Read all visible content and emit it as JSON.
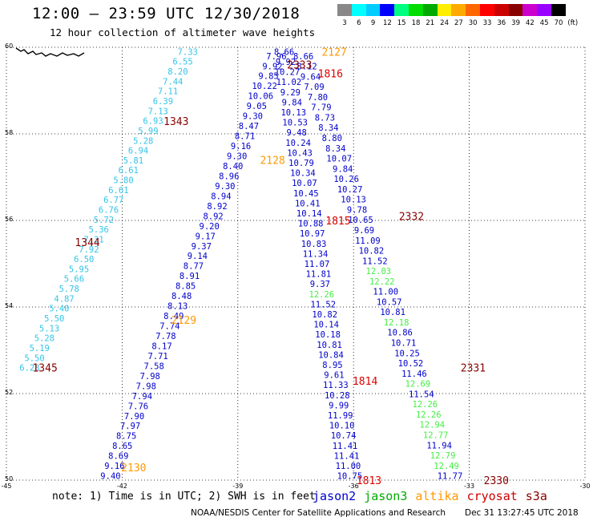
{
  "header": {
    "title": "12:00 — 23:59 UTC 12/30/2018",
    "subtitle": "12 hour collection of altimeter wave heights"
  },
  "colorbar": {
    "labels": [
      "3",
      "6",
      "9",
      "12",
      "15",
      "18",
      "21",
      "24",
      "27",
      "30",
      "33",
      "36",
      "39",
      "42",
      "45",
      "70",
      "(ft)"
    ],
    "colors": [
      "#888888",
      "#00ffff",
      "#00ccff",
      "#0000ff",
      "#00ff80",
      "#00dd00",
      "#00aa00",
      "#ffee00",
      "#ffaa00",
      "#ff6600",
      "#ff0000",
      "#cc0000",
      "#880000",
      "#cc00cc",
      "#9900ff",
      "#000000"
    ]
  },
  "footer": {
    "note": "note: 1) Time is in UTC; 2) SWH is in feet",
    "legend": [
      {
        "label": "jason2",
        "color": "#0000cc"
      },
      {
        "label": "jason3",
        "color": "#00aa00"
      },
      {
        "label": "altika",
        "color": "#ff9900"
      },
      {
        "label": "cryosat",
        "color": "#cc0000"
      },
      {
        "label": "s3a",
        "color": "#880000"
      }
    ],
    "credit": "NOAA/NESDIS Center for Satellite Applications and Research",
    "timestamp": "Dec 31 13:27:45 UTC 2018"
  },
  "chart_data": {
    "type": "scatter",
    "xlim": [
      -45,
      -30
    ],
    "ylim": [
      50,
      60
    ],
    "xticks": [
      -45,
      -42,
      -39,
      -36,
      -33,
      -30
    ],
    "xtick_labels": [
      "-45",
      "-42",
      "-39",
      "-36",
      "-33",
      "-30"
    ],
    "yticks": [
      50,
      52,
      54,
      56,
      58,
      60
    ],
    "ytick_labels": [
      "50",
      "52",
      "54",
      "56",
      "58",
      "60"
    ],
    "grid": "dotted",
    "colors": {
      "lightblue": "#33c4e8",
      "blue": "#0000cc",
      "green": "#44ee44",
      "darkred": "#880000",
      "red": "#dd0000",
      "orange": "#ff9900"
    },
    "tracks": [
      {
        "id": "s3a-1345-1344-1343",
        "color": "lightblue",
        "lon_start": -44.4,
        "lat_start": 52.6,
        "lon_end": -40.3,
        "lat_end": 59.9,
        "values": [
          "6.28",
          "5.50",
          "5.19",
          "5.28",
          "5.13",
          "5.50",
          "5.40",
          "4.87",
          "5.78",
          "5.66",
          "5.95",
          "6.50",
          "7.92",
          "7.31",
          "5.36",
          "5.72",
          "6.76",
          "6.77",
          "6.61",
          "5.80",
          "6.61",
          "5.81",
          "6.94",
          "5.28",
          "5.99",
          "6.93",
          "7.13",
          "6.39",
          "7.11",
          "7.44",
          "8.20",
          "6.55",
          "7.33"
        ]
      },
      {
        "id": "s3a-2130-2129-2128",
        "color": "blue",
        "lon_start": -42.3,
        "lat_start": 50.1,
        "lon_end": -38.0,
        "lat_end": 59.8,
        "values": [
          "9.40",
          "9.16",
          "8.69",
          "8.65",
          "8.75",
          "7.97",
          "7.90",
          "7.76",
          "7.94",
          "7.98",
          "7.98",
          "7.58",
          "7.71",
          "8.17",
          "7.78",
          "7.74",
          "8.49",
          "8.13",
          "8.48",
          "8.85",
          "8.91",
          "8.77",
          "9.14",
          "9.37",
          "9.17",
          "9.20",
          "8.92",
          "8.92",
          "8.94",
          "9.30",
          "8.96",
          "8.40",
          "9.30",
          "9.16",
          "8.71",
          "8.47",
          "9.30",
          "9.05",
          "10.06",
          "10.22",
          "9.85",
          "9.92",
          "7.96"
        ]
      },
      {
        "id": "jason2-1813-1814-1815-1816",
        "color": "blue",
        "lon_start": -36.1,
        "lat_start": 50.1,
        "lon_end": -37.8,
        "lat_end": 59.9,
        "values": [
          "10.75",
          "11.00",
          "11.41",
          "11.41",
          "10.74",
          "10.10",
          "11.99",
          "9.99",
          "10.28",
          "11.33",
          "9.61",
          "8.95",
          "10.84",
          "10.81",
          "10.18",
          "10.14",
          "10.82",
          "11.52",
          "12.26",
          "9.37",
          "11.81",
          "11.07",
          "11.34",
          "10.83",
          "10.97",
          "10.88",
          "10.14",
          "10.41",
          "10.45",
          "10.07",
          "10.34",
          "10.79",
          "10.43",
          "10.24",
          "9.48",
          "10.53",
          "10.13",
          "9.84",
          "9.29",
          "11.02",
          "10.27",
          "9.92",
          "8.66"
        ]
      },
      {
        "id": "s3a-2330-2331-2332-2333",
        "color": "blue",
        "lon_start": -33.5,
        "lat_start": 50.1,
        "lon_end": -37.3,
        "lat_end": 59.8,
        "values": [
          "11.77",
          "12.49",
          "12.79",
          "11.94",
          "12.77",
          "12.94",
          "12.26",
          "12.26",
          "11.54",
          "12.69",
          "11.46",
          "10.52",
          "10.25",
          "10.71",
          "10.86",
          "12.18",
          "10.81",
          "10.57",
          "11.00",
          "12.22",
          "12.03",
          "11.52",
          "10.82",
          "11.09",
          "9.69",
          "10.65",
          "9.78",
          "10.13",
          "10.27",
          "10.26",
          "9.84",
          "10.07",
          "8.34",
          "8.80",
          "8.34",
          "8.73",
          "7.79",
          "7.80",
          "7.09",
          "9.64",
          "8.12",
          "8.66"
        ]
      }
    ],
    "pass_labels": [
      {
        "text": "1345",
        "color": "darkred",
        "lon": -44.0,
        "lat": 52.6
      },
      {
        "text": "1344",
        "color": "darkred",
        "lon": -42.9,
        "lat": 55.5
      },
      {
        "text": "1343",
        "color": "darkred",
        "lon": -40.6,
        "lat": 58.3
      },
      {
        "text": "2130",
        "color": "orange",
        "lon": -41.7,
        "lat": 50.3
      },
      {
        "text": "2129",
        "color": "orange",
        "lon": -40.4,
        "lat": 53.7
      },
      {
        "text": "2128",
        "color": "orange",
        "lon": -38.1,
        "lat": 57.4
      },
      {
        "text": "2127",
        "color": "orange",
        "lon": -36.5,
        "lat": 59.9
      },
      {
        "text": "1813",
        "color": "red",
        "lon": -35.6,
        "lat": 50.0
      },
      {
        "text": "1814",
        "color": "red",
        "lon": -35.7,
        "lat": 52.3
      },
      {
        "text": "1815",
        "color": "red",
        "lon": -36.4,
        "lat": 56.0
      },
      {
        "text": "1816",
        "color": "red",
        "lon": -36.6,
        "lat": 59.4
      },
      {
        "text": "2330",
        "color": "darkred",
        "lon": -32.3,
        "lat": 50.0
      },
      {
        "text": "2331",
        "color": "darkred",
        "lon": -32.9,
        "lat": 52.6
      },
      {
        "text": "2332",
        "color": "darkred",
        "lon": -34.5,
        "lat": 56.1
      },
      {
        "text": "2333",
        "color": "darkred",
        "lon": -37.4,
        "lat": 59.6
      }
    ]
  }
}
